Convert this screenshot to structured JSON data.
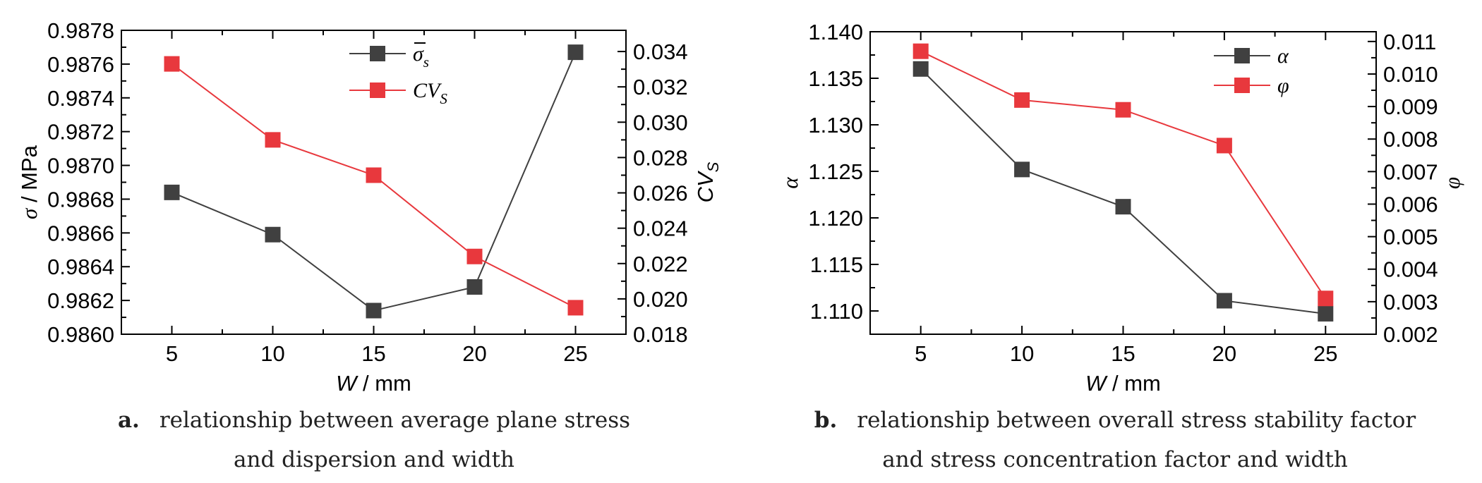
{
  "chart_data": [
    {
      "type": "line",
      "x": [
        5,
        10,
        15,
        20,
        25
      ],
      "xlabel_var": "W",
      "xlabel_unit": " / mm",
      "ylabel_var": "σ",
      "ylabel_unit": " / MPa",
      "y2label_var": "CV",
      "y2label_sub": "S",
      "xlim": [
        2.5,
        27.5
      ],
      "ylim": [
        0.986,
        0.9878
      ],
      "y2lim": [
        0.018,
        0.0352
      ],
      "xticks": [
        "5",
        "10",
        "15",
        "20",
        "25"
      ],
      "yticks": [
        "0.9860",
        "0.9862",
        "0.9864",
        "0.9866",
        "0.9868",
        "0.9870",
        "0.9872",
        "0.9874",
        "0.9876",
        "0.9878"
      ],
      "y2ticks": [
        "0.018",
        "0.020",
        "0.022",
        "0.024",
        "0.026",
        "0.028",
        "0.030",
        "0.032",
        "0.034"
      ],
      "legend_position": "top-center",
      "series": [
        {
          "name": "σ",
          "name_sub": "s",
          "axis": "left",
          "color": "#404040",
          "values": [
            0.98684,
            0.98659,
            0.98614,
            0.98628,
            0.98767
          ]
        },
        {
          "name": "CV",
          "name_sub": "S",
          "axis": "right",
          "color": "#e8383d",
          "values": [
            0.0333,
            0.029,
            0.027,
            0.0224,
            0.0195
          ]
        }
      ],
      "caption_letter": "a.",
      "caption_line1": "relationship between average plane stress",
      "caption_line2": "and dispersion and width"
    },
    {
      "type": "line",
      "x": [
        5,
        10,
        15,
        20,
        25
      ],
      "xlabel_var": "W",
      "xlabel_unit": " / mm",
      "ylabel_var": "α",
      "ylabel_unit": "",
      "y2label_var": "φ",
      "y2label_sub": "",
      "xlim": [
        2.5,
        27.5
      ],
      "ylim": [
        1.1075,
        1.14
      ],
      "y2lim": [
        0.002,
        0.0113
      ],
      "xticks": [
        "5",
        "10",
        "15",
        "20",
        "25"
      ],
      "yticks": [
        "1.110",
        "1.115",
        "1.120",
        "1.125",
        "1.130",
        "1.135",
        "1.140"
      ],
      "y2ticks": [
        "0.002",
        "0.003",
        "0.004",
        "0.005",
        "0.006",
        "0.007",
        "0.008",
        "0.009",
        "0.010",
        "0.011"
      ],
      "legend_position": "top-right",
      "series": [
        {
          "name": "α",
          "name_sub": "",
          "axis": "left",
          "color": "#404040",
          "values": [
            1.136,
            1.1252,
            1.1212,
            1.1111,
            1.1097
          ]
        },
        {
          "name": "φ",
          "name_sub": "",
          "axis": "right",
          "color": "#e8383d",
          "values": [
            0.0107,
            0.0092,
            0.0089,
            0.0078,
            0.0031
          ]
        }
      ],
      "caption_letter": "b.",
      "caption_line1": "relationship between overall stress stability factor",
      "caption_line2": "and stress concentration factor and width"
    }
  ]
}
